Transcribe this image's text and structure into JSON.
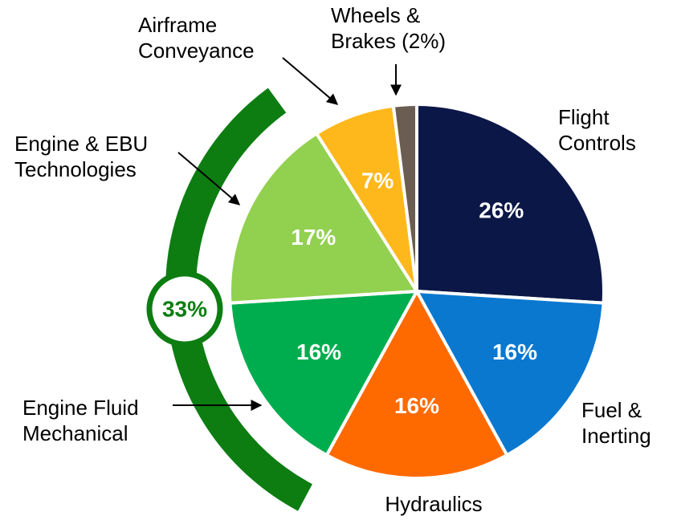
{
  "chart_data": {
    "type": "pie",
    "categories": [
      "Flight\nControls",
      "Fuel &\nInerting",
      "Hydraulics",
      "Engine Fluid\nMechanical",
      "Engine & EBU\nTechnologies",
      "Airframe\nConveyance",
      "Wheels &\nBrakes (2%)"
    ],
    "values": [
      26,
      16,
      16,
      16,
      17,
      7,
      2
    ],
    "value_labels": [
      "26%",
      "16%",
      "16%",
      "16%",
      "17%",
      "7%",
      null
    ],
    "colors": [
      "#0b1747",
      "#0a78cf",
      "#ff6a00",
      "#00ad4e",
      "#92d050",
      "#ffb81c",
      "#6b5d51"
    ],
    "annotation": {
      "text": "33%",
      "color": "#0d7d12"
    }
  }
}
